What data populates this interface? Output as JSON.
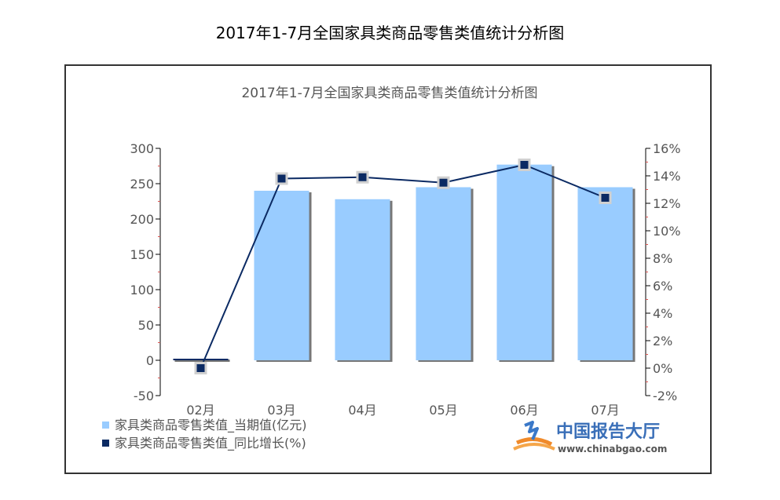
{
  "page_title": "2017年1-7月全国家具类商品零售类值统计分析图",
  "chart_data": {
    "type": "bar",
    "title": "2017年1-7月全国家具类商品零售类值统计分析图",
    "categories": [
      "02月",
      "03月",
      "04月",
      "05月",
      "06月",
      "07月"
    ],
    "series": [
      {
        "name": "家具类商品零售类值_当期值(亿元)",
        "type": "bar",
        "axis": "left",
        "color": "#99ccff",
        "values": [
          0,
          240,
          228,
          245,
          277,
          245
        ]
      },
      {
        "name": "家具类商品零售类值_同比增长(%)",
        "type": "line",
        "axis": "right",
        "color": "#0b2a63",
        "values": [
          0,
          13.8,
          13.9,
          13.5,
          14.8,
          12.4
        ]
      }
    ],
    "y_left": {
      "min": -50,
      "max": 300,
      "ticks": [
        300,
        250,
        200,
        150,
        100,
        50,
        0,
        -50
      ]
    },
    "y_right": {
      "min": -2,
      "max": 16,
      "ticks": [
        "16%",
        "14%",
        "12%",
        "10%",
        "8%",
        "6%",
        "4%",
        "2%",
        "0%",
        "-2%"
      ],
      "tick_values": [
        16,
        14,
        12,
        10,
        8,
        6,
        4,
        2,
        0,
        -2
      ]
    },
    "legend_position": "bottom-left",
    "grid": false
  },
  "watermark": {
    "brand": "中国报告大厅",
    "url": "www.chinabgao.com"
  }
}
